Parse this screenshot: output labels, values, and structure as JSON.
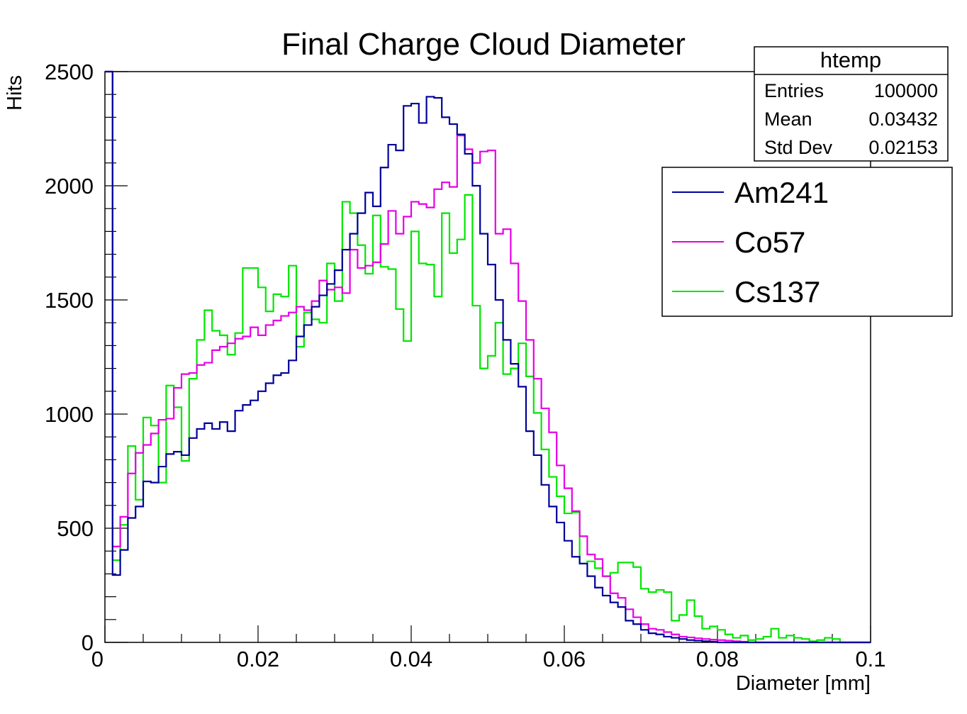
{
  "chart_data": {
    "type": "histogram",
    "title": "Final Charge Cloud Diameter",
    "xlabel": "Diameter [mm]",
    "ylabel": "Hits",
    "xlim": [
      0,
      0.1
    ],
    "ylim": [
      0,
      2500
    ],
    "bin_width": 0.001,
    "x_ticks": [
      "0",
      "0.02",
      "0.04",
      "0.06",
      "0.08",
      "0.1"
    ],
    "x_tick_values": [
      0,
      0.02,
      0.04,
      0.06,
      0.08,
      0.1
    ],
    "y_ticks": [
      "0",
      "500",
      "1000",
      "1500",
      "2000",
      "2500"
    ],
    "y_tick_values": [
      0,
      500,
      1000,
      1500,
      2000,
      2500
    ],
    "grid": false,
    "stats_box": {
      "title": "htemp",
      "rows": [
        {
          "label": "Entries",
          "value": "100000"
        },
        {
          "label": "Mean",
          "value": "0.03432"
        },
        {
          "label": "Std Dev",
          "value": "0.02153"
        }
      ]
    },
    "legend": {
      "position": "top-right",
      "entries": [
        {
          "name": "Am241",
          "color": "#000099"
        },
        {
          "name": "Co57",
          "color": "#e600e6"
        },
        {
          "name": "Cs137",
          "color": "#00e600"
        }
      ]
    },
    "series": [
      {
        "name": "Am241",
        "color": "#000099",
        "values": [
          2500,
          295,
          405,
          545,
          595,
          705,
          700,
          770,
          825,
          835,
          820,
          895,
          935,
          960,
          935,
          965,
          925,
          1015,
          1040,
          1060,
          1100,
          1135,
          1170,
          1180,
          1235,
          1340,
          1390,
          1470,
          1520,
          1570,
          1630,
          1720,
          1790,
          1880,
          1970,
          1910,
          2080,
          2180,
          2155,
          2350,
          2360,
          2275,
          2390,
          2385,
          2300,
          2270,
          2225,
          2140,
          2000,
          1790,
          1655,
          1500,
          1325,
          1220,
          1120,
          925,
          820,
          690,
          595,
          525,
          445,
          375,
          345,
          290,
          240,
          205,
          175,
          155,
          95,
          80,
          55,
          40,
          35,
          25,
          20,
          15,
          10,
          8,
          5,
          3,
          0,
          0,
          0,
          0,
          0,
          0,
          0,
          0,
          0,
          0,
          0,
          0,
          0,
          0,
          0,
          0,
          0,
          0,
          0,
          0
        ]
      },
      {
        "name": "Co57",
        "color": "#e600e6",
        "values": [
          2500,
          420,
          550,
          740,
          830,
          865,
          915,
          975,
          980,
          1115,
          1175,
          1180,
          1215,
          1225,
          1280,
          1295,
          1310,
          1330,
          1340,
          1380,
          1345,
          1390,
          1410,
          1430,
          1445,
          1470,
          1455,
          1495,
          1585,
          1545,
          1555,
          1530,
          1720,
          1640,
          1650,
          1665,
          1745,
          1890,
          1790,
          1865,
          1930,
          1920,
          1905,
          1985,
          2015,
          1995,
          2220,
          2160,
          2100,
          2150,
          2155,
          1790,
          1810,
          1660,
          1495,
          1325,
          1155,
          1025,
          920,
          775,
          675,
          575,
          465,
          385,
          365,
          290,
          215,
          195,
          145,
          110,
          80,
          60,
          55,
          45,
          35,
          25,
          22,
          18,
          15,
          12,
          10,
          8,
          5,
          3,
          0,
          0,
          0,
          0,
          0,
          0,
          0,
          0,
          0,
          0,
          0,
          0,
          0,
          0,
          0,
          0
        ]
      },
      {
        "name": "Cs137",
        "color": "#00e600",
        "values": [
          2500,
          360,
          515,
          860,
          625,
          985,
          950,
          700,
          1125,
          1030,
          795,
          1155,
          1325,
          1455,
          1365,
          1345,
          1260,
          1355,
          1640,
          1640,
          1555,
          1450,
          1525,
          1515,
          1650,
          1295,
          1445,
          1415,
          1400,
          1660,
          1495,
          1930,
          1880,
          1740,
          1615,
          1870,
          1645,
          1635,
          1460,
          1320,
          1800,
          1660,
          1655,
          1515,
          1880,
          1705,
          1765,
          1960,
          1475,
          1200,
          1255,
          1400,
          1175,
          1200,
          1310,
          1165,
          1005,
          845,
          725,
          640,
          565,
          570,
          345,
          355,
          325,
          290,
          305,
          350,
          350,
          330,
          235,
          220,
          230,
          220,
          95,
          120,
          185,
          115,
          60,
          70,
          55,
          35,
          20,
          30,
          10,
          15,
          25,
          60,
          20,
          30,
          20,
          15,
          5,
          10,
          20,
          15,
          0,
          0,
          0,
          0
        ]
      }
    ]
  }
}
